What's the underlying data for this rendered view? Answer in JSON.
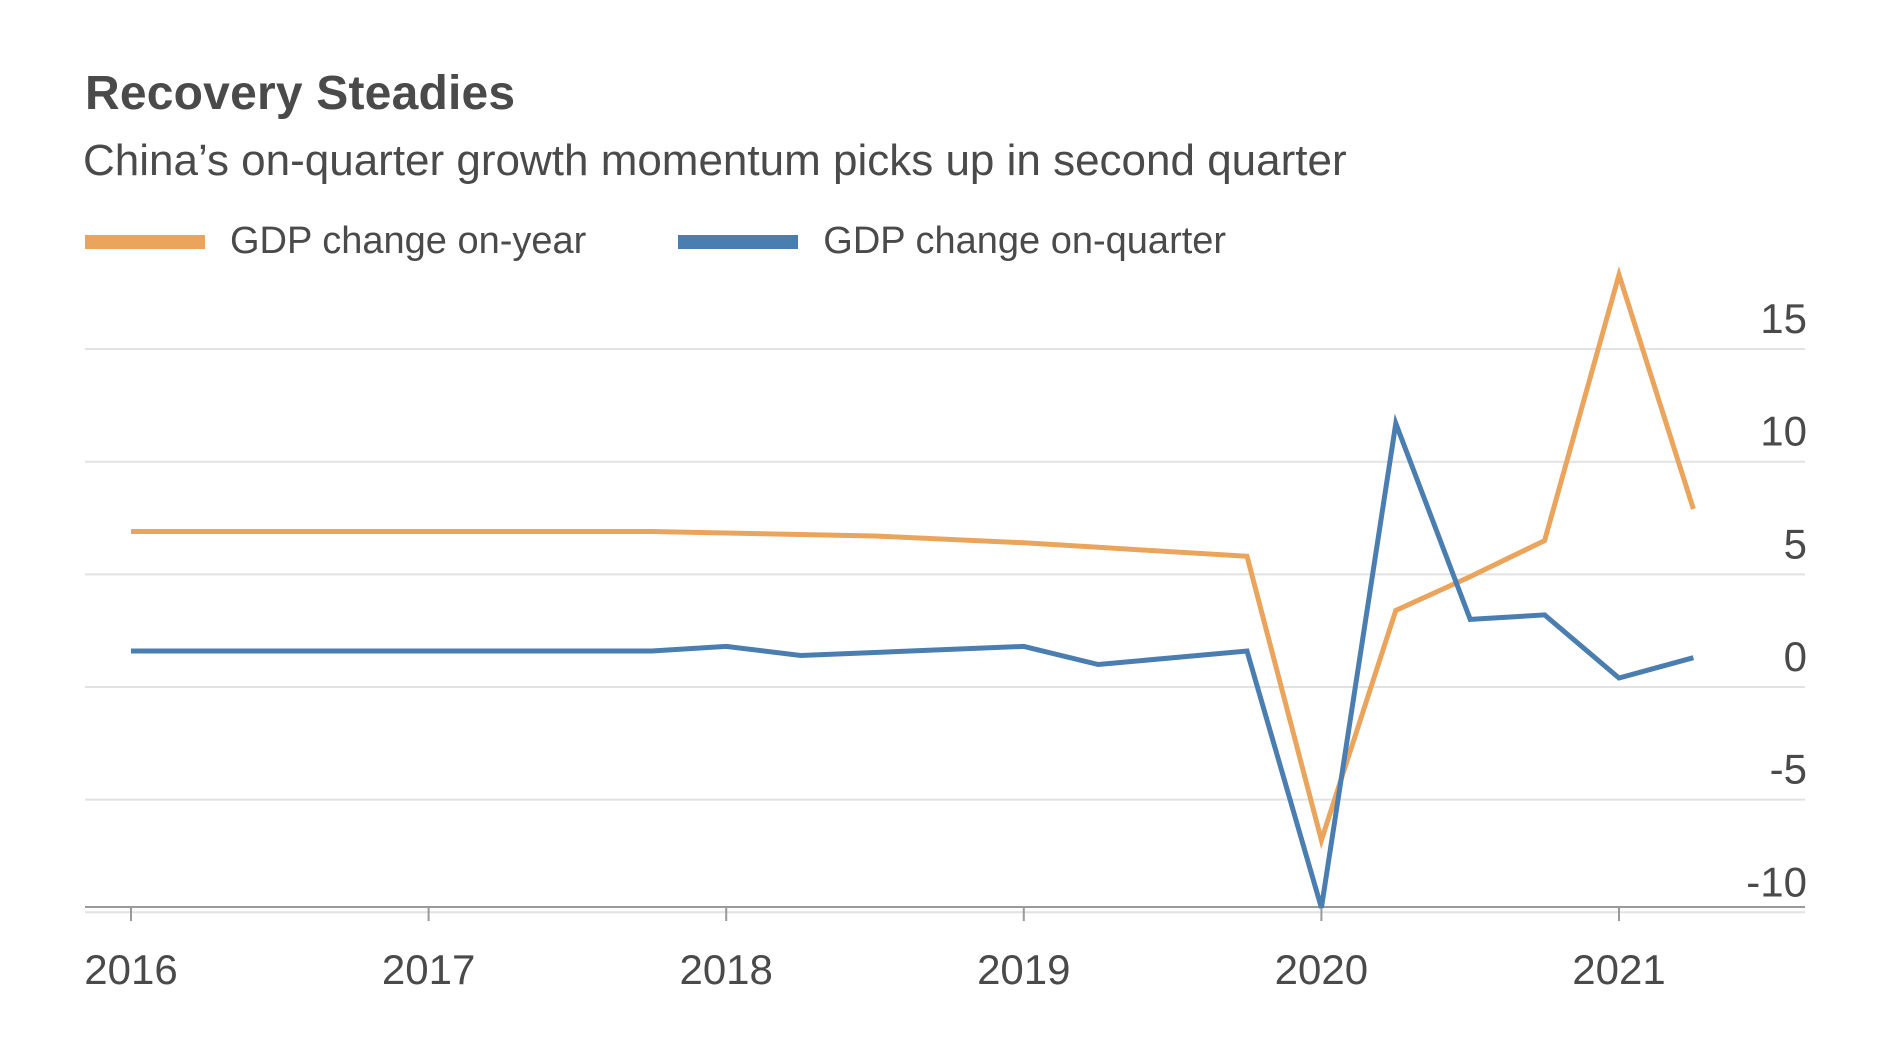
{
  "header": {
    "title": "Recovery Steadies",
    "subtitle": "China’s on-quarter growth momentum picks up in second quarter"
  },
  "legend": [
    {
      "label": "GDP change on-year",
      "color": "#eba45c"
    },
    {
      "label": "GDP change on-quarter",
      "color": "#4a7eb0"
    }
  ],
  "chart_data": {
    "type": "line",
    "xlabel": "",
    "ylabel": "",
    "x_ticks": [
      "2016",
      "2017",
      "2018",
      "2019",
      "2020",
      "2021"
    ],
    "y_ticks": [
      15,
      10,
      5,
      0,
      -5,
      -10
    ],
    "ylim": [
      -10.2,
      17.5
    ],
    "xlim": [
      "2016Q1",
      "2021Q3"
    ],
    "y_axis_position": "right",
    "grid": "horizontal",
    "legend_position": "top-left",
    "series": [
      {
        "name": "GDP change on-year",
        "color": "#eba45c",
        "points": [
          {
            "x": "2016Q1",
            "y": 6.9
          },
          {
            "x": "2017Q4",
            "y": 6.9
          },
          {
            "x": "2018Q3",
            "y": 6.7
          },
          {
            "x": "2019Q1",
            "y": 6.4
          },
          {
            "x": "2019Q2",
            "y": 6.2
          },
          {
            "x": "2019Q4",
            "y": 5.8
          },
          {
            "x": "2020Q1",
            "y": -6.8
          },
          {
            "x": "2020Q2",
            "y": 3.4
          },
          {
            "x": "2020Q3",
            "y": 4.9
          },
          {
            "x": "2020Q4",
            "y": 6.5
          },
          {
            "x": "2021Q1",
            "y": 18.3
          },
          {
            "x": "2021Q2",
            "y": 7.9
          }
        ]
      },
      {
        "name": "GDP change on-quarter",
        "color": "#4a7eb0",
        "points": [
          {
            "x": "2016Q1",
            "y": 1.6
          },
          {
            "x": "2017Q4",
            "y": 1.6
          },
          {
            "x": "2018Q1",
            "y": 1.8
          },
          {
            "x": "2018Q2",
            "y": 1.4
          },
          {
            "x": "2019Q1",
            "y": 1.8
          },
          {
            "x": "2019Q2",
            "y": 1.0
          },
          {
            "x": "2019Q4",
            "y": 1.6
          },
          {
            "x": "2020Q1",
            "y": -9.8
          },
          {
            "x": "2020Q2",
            "y": 11.7
          },
          {
            "x": "2020Q3",
            "y": 3.0
          },
          {
            "x": "2020Q4",
            "y": 3.2
          },
          {
            "x": "2021Q1",
            "y": 0.4
          },
          {
            "x": "2021Q2",
            "y": 1.3
          }
        ]
      }
    ]
  }
}
